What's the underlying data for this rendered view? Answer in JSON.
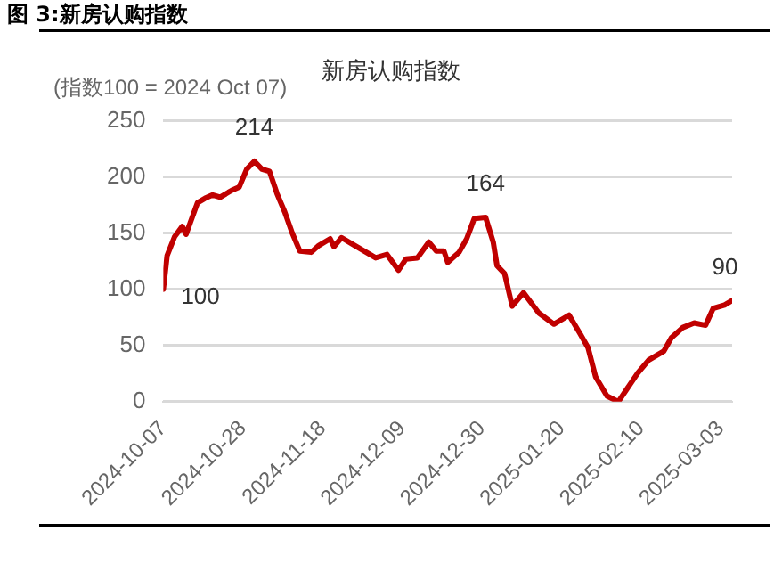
{
  "chart_data": {
    "type": "line",
    "title": "图 3:新房认购指数",
    "subtitle": "新房认购指数",
    "ylabel": "(指数100 = 2024 Oct 07)",
    "x": [
      "2024-10-07",
      "2024-10-08",
      "2024-10-10",
      "2024-10-12",
      "2024-10-13",
      "2024-10-16",
      "2024-10-18",
      "2024-10-20",
      "2024-10-22",
      "2024-10-25",
      "2024-10-27",
      "2024-10-29",
      "2024-10-31",
      "2024-11-02",
      "2024-11-04",
      "2024-11-06",
      "2024-11-08",
      "2024-11-10",
      "2024-11-12",
      "2024-11-15",
      "2024-11-17",
      "2024-11-20",
      "2024-11-21",
      "2024-11-23",
      "2024-11-26",
      "2024-11-29",
      "2024-12-02",
      "2024-12-05",
      "2024-12-08",
      "2024-12-10",
      "2024-12-13",
      "2024-12-16",
      "2024-12-18",
      "2024-12-20",
      "2024-12-21",
      "2024-12-24",
      "2024-12-26",
      "2024-12-28",
      "2024-12-31",
      "2025-01-02",
      "2025-01-03",
      "2025-01-05",
      "2025-01-07",
      "2025-01-10",
      "2025-01-14",
      "2025-01-18",
      "2025-01-22",
      "2025-01-25",
      "2025-01-27",
      "2025-01-29",
      "2025-02-01",
      "2025-02-04",
      "2025-02-06",
      "2025-02-09",
      "2025-02-12",
      "2025-02-16",
      "2025-02-18",
      "2025-02-21",
      "2025-02-24",
      "2025-02-27",
      "2025-03-01",
      "2025-03-04",
      "2025-03-06"
    ],
    "series": [
      {
        "color": "#c00000",
        "values": [
          100,
          130,
          147,
          156,
          149,
          177,
          181,
          184,
          182,
          188,
          191,
          207,
          214,
          207,
          205,
          185,
          169,
          150,
          134,
          133,
          139,
          145,
          138,
          146,
          140,
          134,
          128,
          131,
          117,
          127,
          128,
          142,
          134,
          134,
          124,
          133,
          145,
          163,
          164,
          142,
          121,
          114,
          85,
          97,
          79,
          69,
          77,
          60,
          48,
          22,
          5,
          0,
          10,
          25,
          37,
          45,
          57,
          66,
          70,
          68,
          83,
          86,
          90
        ]
      }
    ],
    "xlim": [
      "2024-10-07",
      "2025-03-06"
    ],
    "xticks": [
      "2024-10-07",
      "2024-10-28",
      "2024-11-18",
      "2024-12-09",
      "2024-12-30",
      "2025-01-20",
      "2025-02-10",
      "2025-03-03"
    ],
    "ylim": [
      0,
      250
    ],
    "yticks": [
      0,
      50,
      100,
      150,
      200,
      250
    ],
    "grid": "y",
    "legend": false,
    "marker": "none",
    "line_style": "solid",
    "annotations": [
      {
        "text": "100",
        "x": "2024-10-07",
        "y": 100
      },
      {
        "text": "214",
        "x": "2024-10-31",
        "y": 214
      },
      {
        "text": "164",
        "x": "2024-12-31",
        "y": 164
      },
      {
        "text": "90",
        "x": "2025-03-06",
        "y": 90
      }
    ]
  }
}
